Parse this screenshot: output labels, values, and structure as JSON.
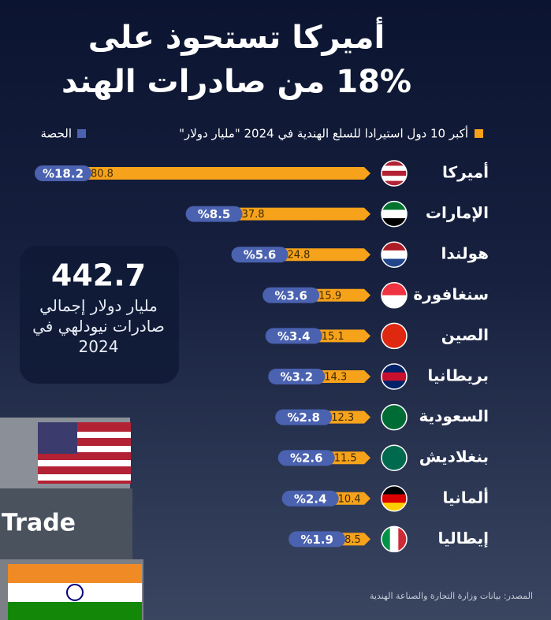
{
  "image_text": "Trade",
  "chart_data": {
    "type": "bar",
    "orientation": "horizontal",
    "title": [
      "أميركا تستحوذ على",
      "18% من صادرات الهند"
    ],
    "categories": [
      "أميركا",
      "الإمارات",
      "هولندا",
      "سنغافورة",
      "الصين",
      "بريطانيا",
      "السعودية",
      "بنغلاديش",
      "ألمانيا",
      "إيطاليا"
    ],
    "series": [
      {
        "name": "أكبر 10 دول استيرادا للسلع الهندية في 2024 \"مليار دولار\"",
        "color": "#f7a21b",
        "values": [
          80.8,
          37.8,
          24.8,
          15.9,
          15.1,
          14.3,
          12.3,
          11.5,
          10.4,
          8.5
        ]
      },
      {
        "name": "الحصة",
        "color": "#4a62b0",
        "values": [
          18.2,
          8.5,
          5.6,
          3.6,
          3.4,
          3.2,
          2.8,
          2.6,
          2.4,
          1.9
        ],
        "value_labels": [
          "%18.2",
          "%8.5",
          "%5.6",
          "%3.6",
          "%3.4",
          "%3.2",
          "%2.8",
          "%2.6",
          "%2.4",
          "%1.9"
        ]
      }
    ],
    "total": {
      "value": 442.7,
      "label": "مليار دولار إجمالي صادرات نيودلهي في 2024"
    },
    "source": "المصدر: بيانات وزارة التجارة والصناعة الهندية"
  }
}
